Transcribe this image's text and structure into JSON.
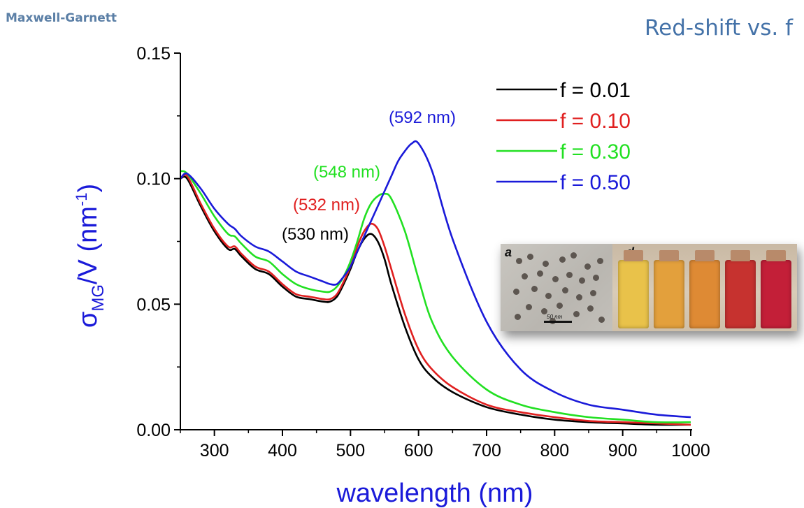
{
  "slide": {
    "corner_title": "Maxwell-Garnett",
    "title": "Red-shift vs. f"
  },
  "inset": {
    "panel_a": "a",
    "panel_d": "d",
    "scale_bar": "50 nm",
    "vial_colors": [
      "#e9c24a",
      "#e3a03c",
      "#de8a34",
      "#c6322f",
      "#c31f38"
    ]
  },
  "chart_data": {
    "type": "line",
    "title": "",
    "xlabel": "wavelength (nm)",
    "ylabel": "σMG/V (nm-1)",
    "ylabel_parts": {
      "main": "σ",
      "sub": "MG",
      "mid": "/V (nm",
      "sup": "-1",
      "end": ")"
    },
    "xlim": [
      250,
      1000
    ],
    "ylim": [
      0,
      0.15
    ],
    "xticks": [
      300,
      400,
      500,
      600,
      700,
      800,
      900,
      1000
    ],
    "yticks": [
      0.0,
      0.05,
      0.1,
      0.15
    ],
    "ytick_labels": [
      "0.00",
      "0.05",
      "0.10",
      "0.15"
    ],
    "grid": false,
    "legend": "top-right",
    "series": [
      {
        "name": "f = 0.01",
        "color": "#000000",
        "peak_label": "(530 nm)",
        "x": [
          250,
          260,
          280,
          300,
          320,
          330,
          340,
          360,
          380,
          400,
          420,
          440,
          460,
          470,
          480,
          490,
          500,
          510,
          520,
          530,
          540,
          550,
          560,
          580,
          600,
          620,
          650,
          700,
          750,
          800,
          850,
          900,
          950,
          1000
        ],
        "y": [
          0.1,
          0.1,
          0.089,
          0.079,
          0.072,
          0.072,
          0.069,
          0.064,
          0.062,
          0.057,
          0.053,
          0.052,
          0.051,
          0.051,
          0.053,
          0.058,
          0.064,
          0.071,
          0.076,
          0.078,
          0.075,
          0.068,
          0.058,
          0.041,
          0.028,
          0.021,
          0.015,
          0.009,
          0.006,
          0.004,
          0.003,
          0.0025,
          0.002,
          0.002
        ]
      },
      {
        "name": "f = 0.10",
        "color": "#e02020",
        "peak_label": "(532 nm)",
        "x": [
          250,
          260,
          280,
          300,
          320,
          330,
          340,
          360,
          380,
          400,
          420,
          440,
          460,
          470,
          480,
          490,
          500,
          510,
          520,
          530,
          540,
          550,
          560,
          580,
          600,
          620,
          650,
          700,
          750,
          800,
          850,
          900,
          950,
          1000
        ],
        "y": [
          0.1,
          0.101,
          0.09,
          0.08,
          0.073,
          0.073,
          0.07,
          0.065,
          0.063,
          0.058,
          0.054,
          0.053,
          0.052,
          0.052,
          0.054,
          0.059,
          0.065,
          0.073,
          0.079,
          0.082,
          0.08,
          0.073,
          0.064,
          0.046,
          0.032,
          0.024,
          0.017,
          0.01,
          0.007,
          0.005,
          0.0035,
          0.003,
          0.0025,
          0.002
        ]
      },
      {
        "name": "f = 0.30",
        "color": "#22e022",
        "peak_label": "(548 nm)",
        "x": [
          250,
          260,
          280,
          300,
          320,
          330,
          340,
          360,
          380,
          400,
          420,
          440,
          460,
          470,
          480,
          490,
          500,
          510,
          520,
          530,
          540,
          550,
          560,
          580,
          600,
          620,
          650,
          700,
          750,
          800,
          850,
          900,
          950,
          1000
        ],
        "y": [
          0.103,
          0.102,
          0.094,
          0.085,
          0.078,
          0.077,
          0.074,
          0.069,
          0.067,
          0.062,
          0.058,
          0.056,
          0.055,
          0.055,
          0.057,
          0.061,
          0.067,
          0.075,
          0.084,
          0.09,
          0.093,
          0.094,
          0.092,
          0.079,
          0.06,
          0.043,
          0.029,
          0.016,
          0.01,
          0.007,
          0.005,
          0.004,
          0.003,
          0.003
        ]
      },
      {
        "name": "f = 0.50",
        "color": "#1a1ad9",
        "peak_label": "(592 nm)",
        "x": [
          250,
          260,
          280,
          300,
          320,
          330,
          340,
          360,
          380,
          400,
          420,
          440,
          460,
          470,
          480,
          490,
          500,
          510,
          520,
          530,
          540,
          550,
          560,
          570,
          580,
          590,
          600,
          620,
          650,
          700,
          750,
          800,
          850,
          900,
          950,
          1000
        ],
        "y": [
          0.1,
          0.102,
          0.096,
          0.088,
          0.082,
          0.08,
          0.077,
          0.073,
          0.071,
          0.067,
          0.063,
          0.061,
          0.059,
          0.058,
          0.058,
          0.061,
          0.065,
          0.071,
          0.077,
          0.083,
          0.089,
          0.095,
          0.101,
          0.107,
          0.111,
          0.114,
          0.114,
          0.103,
          0.076,
          0.043,
          0.024,
          0.015,
          0.01,
          0.008,
          0.006,
          0.005
        ]
      }
    ]
  }
}
